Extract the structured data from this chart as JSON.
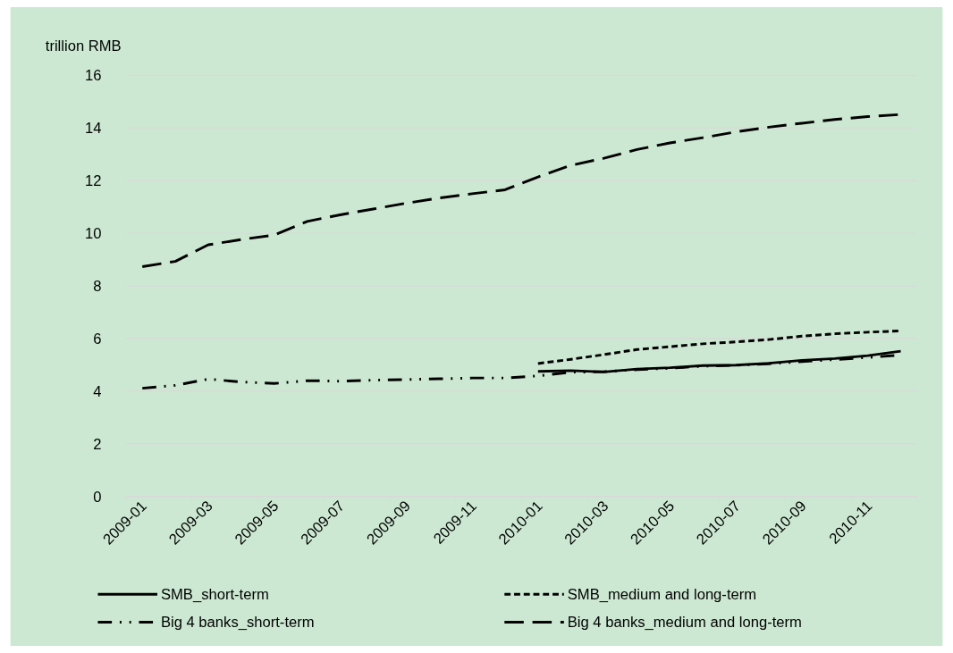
{
  "chart_data": {
    "type": "line",
    "ylabel": "trillion RMB",
    "categories": [
      "2009-01",
      null,
      "2009-03",
      null,
      "2009-05",
      null,
      "2009-07",
      null,
      "2009-09",
      null,
      "2009-11",
      null,
      "2010-01",
      null,
      "2010-03",
      null,
      "2010-05",
      null,
      "2010-07",
      null,
      "2010-09",
      null,
      "2010-11",
      null
    ],
    "series": [
      {
        "name": "SMB_short-term",
        "color": "#000000",
        "line_style": "solid",
        "values": [
          null,
          null,
          null,
          null,
          null,
          null,
          null,
          null,
          null,
          null,
          null,
          null,
          4.75,
          4.78,
          4.73,
          4.84,
          4.89,
          4.97,
          4.99,
          5.06,
          5.17,
          5.24,
          5.35,
          5.52
        ]
      },
      {
        "name": "SMB_medium and long-term",
        "color": "#000000",
        "line_style": "dashed",
        "values": [
          null,
          null,
          null,
          null,
          null,
          null,
          null,
          null,
          null,
          null,
          null,
          null,
          5.05,
          5.21,
          5.39,
          5.58,
          5.69,
          5.8,
          5.87,
          5.96,
          6.09,
          6.18,
          6.24,
          6.29
        ]
      },
      {
        "name": "Big 4 banks_short-term",
        "color": "#000000",
        "line_style": "dashdotdot",
        "values": [
          4.11,
          4.22,
          4.46,
          4.35,
          4.29,
          4.4,
          4.38,
          4.42,
          4.44,
          4.47,
          4.5,
          4.5,
          4.58,
          4.72,
          4.74,
          4.82,
          4.87,
          4.95,
          4.98,
          5.04,
          5.12,
          5.2,
          5.28,
          5.37
        ]
      },
      {
        "name": "Big 4 banks_medium and long-term",
        "color": "#000000",
        "line_style": "longdash",
        "values": [
          8.73,
          8.93,
          9.56,
          9.76,
          9.93,
          10.45,
          10.7,
          10.92,
          11.14,
          11.34,
          11.5,
          11.65,
          12.14,
          12.58,
          12.85,
          13.18,
          13.43,
          13.63,
          13.85,
          14.03,
          14.18,
          14.32,
          14.43,
          14.51
        ]
      }
    ],
    "ylim": [
      0,
      16
    ],
    "yticks": [
      0,
      2,
      4,
      6,
      8,
      10,
      12,
      14,
      16
    ],
    "grid": "y",
    "legend": "bottom",
    "marker": "none"
  }
}
